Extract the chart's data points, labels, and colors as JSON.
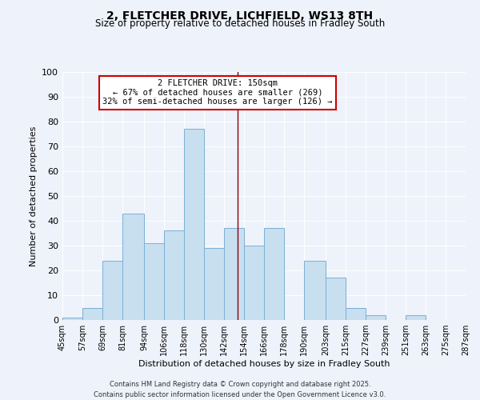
{
  "title1": "2, FLETCHER DRIVE, LICHFIELD, WS13 8TH",
  "title2": "Size of property relative to detached houses in Fradley South",
  "xlabel": "Distribution of detached houses by size in Fradley South",
  "ylabel": "Number of detached properties",
  "bin_labels": [
    "45sqm",
    "57sqm",
    "69sqm",
    "81sqm",
    "94sqm",
    "106sqm",
    "118sqm",
    "130sqm",
    "142sqm",
    "154sqm",
    "166sqm",
    "178sqm",
    "190sqm",
    "203sqm",
    "215sqm",
    "227sqm",
    "239sqm",
    "251sqm",
    "263sqm",
    "275sqm",
    "287sqm"
  ],
  "bin_edges": [
    45,
    57,
    69,
    81,
    94,
    106,
    118,
    130,
    142,
    154,
    166,
    178,
    190,
    203,
    215,
    227,
    239,
    251,
    263,
    275,
    287
  ],
  "counts": [
    1,
    5,
    24,
    43,
    31,
    36,
    77,
    29,
    37,
    30,
    37,
    0,
    24,
    17,
    5,
    2,
    0,
    2,
    0,
    0,
    0
  ],
  "bar_color": "#c8dff0",
  "bar_edge_color": "#7ab0d4",
  "property_size": 150,
  "annotation_title": "2 FLETCHER DRIVE: 150sqm",
  "annotation_line1": "← 67% of detached houses are smaller (269)",
  "annotation_line2": "32% of semi-detached houses are larger (126) →",
  "annotation_box_color": "#ffffff",
  "annotation_box_edge": "#cc0000",
  "vline_color": "#880000",
  "ylim": [
    0,
    100
  ],
  "yticks": [
    0,
    10,
    20,
    30,
    40,
    50,
    60,
    70,
    80,
    90,
    100
  ],
  "footer1": "Contains HM Land Registry data © Crown copyright and database right 2025.",
  "footer2": "Contains public sector information licensed under the Open Government Licence v3.0.",
  "background_color": "#eef2fb",
  "grid_color": "#ffffff",
  "title1_fontsize": 10,
  "title2_fontsize": 8.5,
  "ylabel_fontsize": 8,
  "xlabel_fontsize": 8,
  "tick_fontsize": 7,
  "footer_fontsize": 6,
  "annot_fontsize": 7.5
}
